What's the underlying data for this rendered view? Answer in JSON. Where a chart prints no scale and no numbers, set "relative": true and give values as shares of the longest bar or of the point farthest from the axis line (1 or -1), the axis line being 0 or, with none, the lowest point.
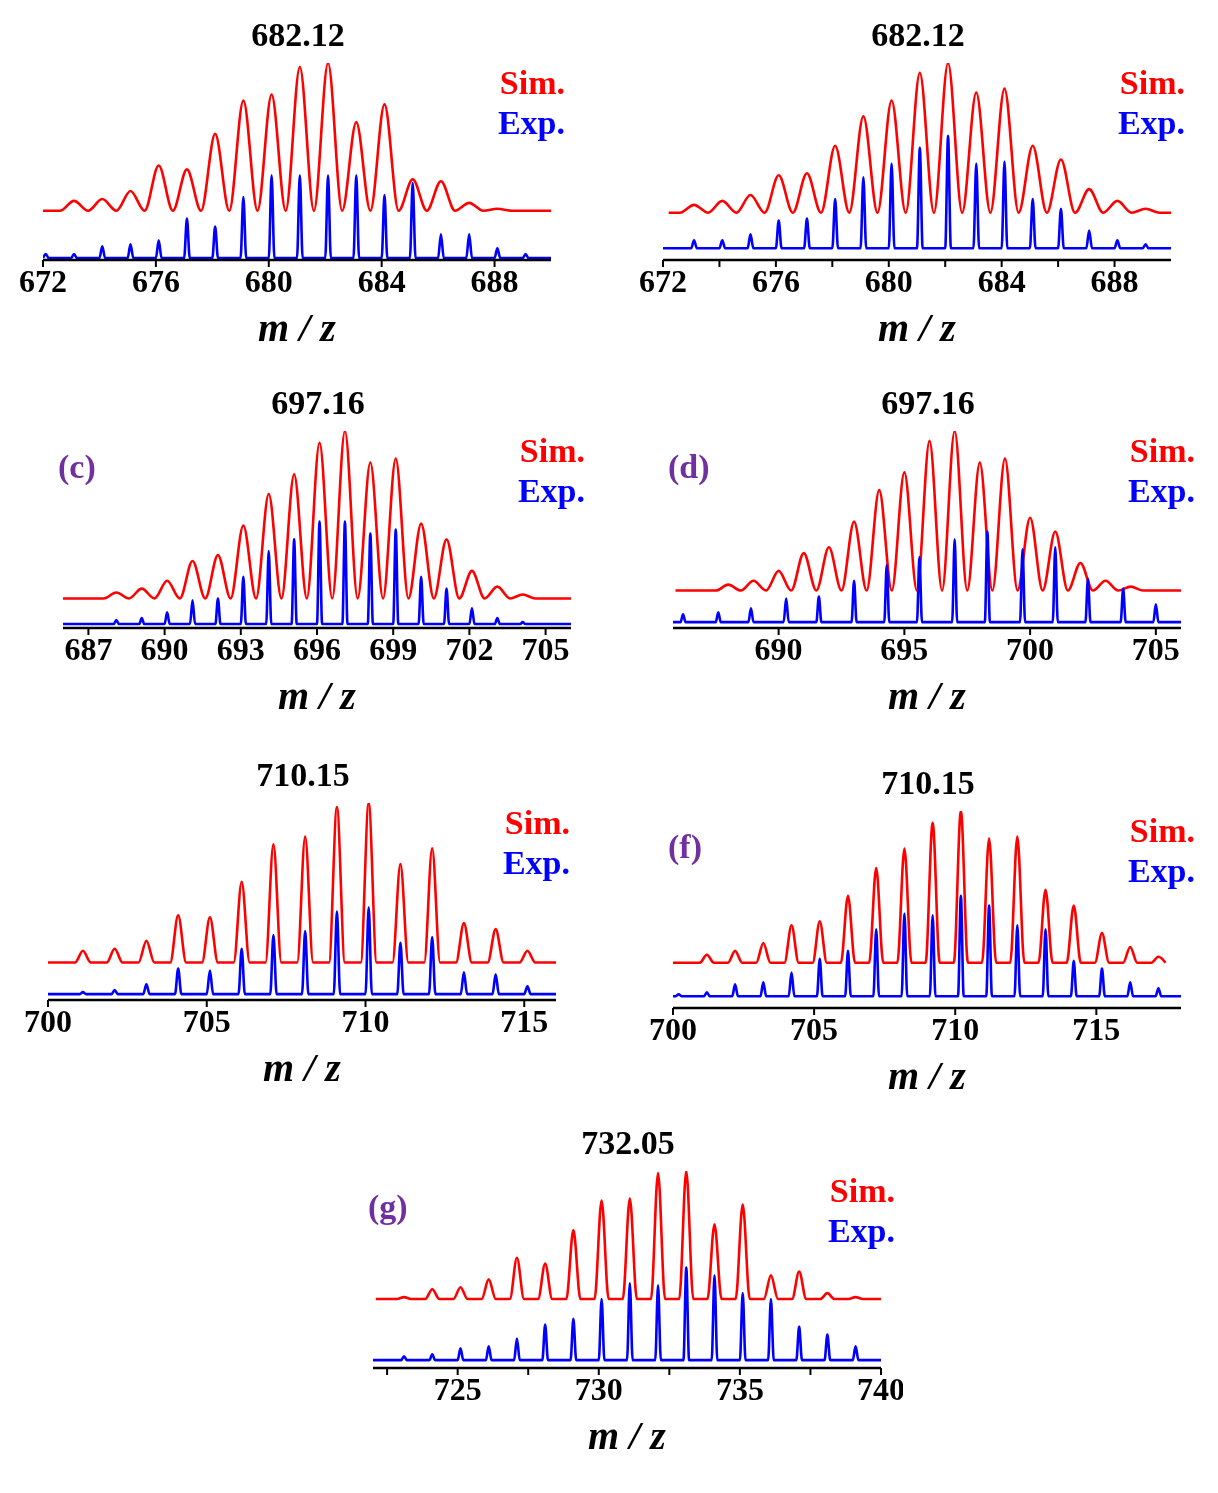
{
  "chart_data": [
    {
      "type": "line",
      "relative": true,
      "title": "682.12",
      "xlabel": "m / z",
      "xlim": [
        672,
        690
      ],
      "xticks": [
        672,
        676,
        680,
        684,
        688
      ],
      "legend": "top right",
      "series": [
        {
          "name": "Sim.",
          "color": "#ff0000",
          "x": [
            672,
            672.6,
            673.1,
            673.6,
            674.1,
            674.6,
            675.1,
            675.6,
            676.1,
            676.6,
            677.1,
            677.6,
            678.1,
            678.6,
            679.1,
            679.6,
            680.1,
            680.6,
            681.1,
            681.6,
            682.1,
            682.6,
            683.1,
            683.6,
            684.1,
            684.6,
            685.1,
            685.6,
            686.1,
            686.6,
            687.1,
            687.6,
            688.1,
            688.6,
            690
          ],
          "values": [
            0.25,
            0.25,
            0.3,
            0.25,
            0.31,
            0.25,
            0.35,
            0.25,
            0.48,
            0.25,
            0.46,
            0.25,
            0.64,
            0.25,
            0.81,
            0.25,
            0.84,
            0.25,
            0.98,
            0.25,
            1,
            0.25,
            0.7,
            0.25,
            0.79,
            0.25,
            0.41,
            0.25,
            0.4,
            0.25,
            0.29,
            0.25,
            0.26,
            0.25,
            0.25
          ]
        },
        {
          "name": "Exp.",
          "color": "#0000ff",
          "x": [
            672,
            672.1,
            672.2,
            673,
            673.1,
            673.2,
            674,
            674.1,
            674.2,
            675,
            675.1,
            675.2,
            676,
            676.1,
            676.2,
            677,
            677.1,
            677.2,
            678,
            678.1,
            678.2,
            679,
            679.1,
            679.2,
            680,
            680.1,
            680.2,
            681,
            681.1,
            681.2,
            682,
            682.1,
            682.2,
            683,
            683.1,
            683.2,
            684,
            684.1,
            684.2,
            685,
            685.1,
            685.2,
            686,
            686.1,
            686.2,
            687,
            687.1,
            687.2,
            688,
            688.1,
            688.2,
            689,
            689.1,
            689.2,
            690
          ],
          "values": [
            0.01,
            0.03,
            0.01,
            0.01,
            0.03,
            0.01,
            0.01,
            0.07,
            0.01,
            0.01,
            0.08,
            0.01,
            0.01,
            0.1,
            0.01,
            0.01,
            0.21,
            0.01,
            0.01,
            0.17,
            0.01,
            0.01,
            0.32,
            0.01,
            0.01,
            0.43,
            0.01,
            0.01,
            0.43,
            0.01,
            0.01,
            0.43,
            0.01,
            0.01,
            0.43,
            0.01,
            0.01,
            0.33,
            0.01,
            0.01,
            0.39,
            0.01,
            0.01,
            0.13,
            0.01,
            0.01,
            0.13,
            0.01,
            0.01,
            0.06,
            0.01,
            0.01,
            0.03,
            0.01,
            0.01
          ]
        }
      ]
    },
    {
      "type": "line",
      "relative": true,
      "title": "682.12",
      "xlabel": "m / z",
      "xlim": [
        672,
        690
      ],
      "xticks": [
        672,
        {
          "value": 674,
          "label": null
        },
        676,
        {
          "value": 678,
          "label": null
        },
        680,
        {
          "value": 682,
          "label": null
        },
        684,
        {
          "value": 686,
          "label": null
        },
        688
      ],
      "legend": "top right",
      "series": [
        {
          "name": "Sim.",
          "color": "#ff0000",
          "x": [
            672.2,
            672.6,
            673.1,
            673.6,
            674.1,
            674.6,
            675.1,
            675.6,
            676.1,
            676.6,
            677.1,
            677.6,
            678.1,
            678.6,
            679.1,
            679.6,
            680.1,
            680.6,
            681.1,
            681.6,
            682.1,
            682.6,
            683.1,
            683.6,
            684.1,
            684.6,
            685.1,
            685.6,
            686.1,
            686.6,
            687.1,
            687.6,
            688.1,
            688.6,
            689.1,
            689.6,
            690
          ],
          "values": [
            0.24,
            0.24,
            0.28,
            0.24,
            0.3,
            0.24,
            0.33,
            0.24,
            0.43,
            0.24,
            0.44,
            0.24,
            0.58,
            0.24,
            0.73,
            0.24,
            0.81,
            0.24,
            0.95,
            0.24,
            1,
            0.24,
            0.85,
            0.24,
            0.87,
            0.24,
            0.58,
            0.24,
            0.51,
            0.24,
            0.36,
            0.24,
            0.3,
            0.24,
            0.26,
            0.24,
            0.24
          ]
        },
        {
          "name": "Exp.",
          "color": "#0000ff",
          "x": [
            672,
            673,
            673.1,
            673.2,
            674,
            674.1,
            674.2,
            675,
            675.1,
            675.2,
            676,
            676.1,
            676.2,
            677,
            677.1,
            677.2,
            678,
            678.1,
            678.2,
            679,
            679.1,
            679.2,
            680,
            680.1,
            680.2,
            681,
            681.1,
            681.2,
            682,
            682.1,
            682.2,
            683,
            683.1,
            683.2,
            684,
            684.1,
            684.2,
            685,
            685.1,
            685.2,
            686,
            686.1,
            686.2,
            687,
            687.1,
            687.2,
            688,
            688.1,
            688.2,
            689,
            689.1,
            689.2,
            690
          ],
          "values": [
            0.06,
            0.06,
            0.1,
            0.06,
            0.06,
            0.1,
            0.06,
            0.06,
            0.13,
            0.06,
            0.06,
            0.2,
            0.06,
            0.06,
            0.21,
            0.06,
            0.06,
            0.31,
            0.06,
            0.06,
            0.42,
            0.06,
            0.06,
            0.49,
            0.06,
            0.06,
            0.57,
            0.06,
            0.06,
            0.63,
            0.06,
            0.06,
            0.49,
            0.06,
            0.06,
            0.5,
            0.06,
            0.06,
            0.31,
            0.06,
            0.06,
            0.26,
            0.06,
            0.06,
            0.15,
            0.06,
            0.06,
            0.1,
            0.06,
            0.06,
            0.08,
            0.06,
            0.06
          ]
        }
      ]
    },
    {
      "type": "line",
      "relative": true,
      "title": "697.16",
      "xlabel": "m / z",
      "annotations": [
        "(c)"
      ],
      "xlim": [
        686,
        706
      ],
      "xticks": [
        687,
        690,
        693,
        696,
        699,
        702,
        705
      ],
      "legend": "top right",
      "series": [
        {
          "name": "Sim.",
          "color": "#ff0000",
          "x": [
            686,
            687.6,
            688.1,
            688.6,
            689.1,
            689.6,
            690.1,
            690.6,
            691.1,
            691.6,
            692.1,
            692.6,
            693.1,
            693.6,
            694.1,
            694.6,
            695.1,
            695.6,
            696.1,
            696.6,
            697.1,
            697.6,
            698.1,
            698.6,
            699.1,
            699.6,
            700.1,
            700.6,
            701.1,
            701.6,
            702.1,
            702.6,
            703.1,
            703.6,
            704.1,
            704.6,
            706
          ],
          "values": [
            0.15,
            0.15,
            0.18,
            0.15,
            0.2,
            0.15,
            0.24,
            0.15,
            0.34,
            0.15,
            0.37,
            0.15,
            0.52,
            0.15,
            0.68,
            0.15,
            0.78,
            0.15,
            0.94,
            0.15,
            1,
            0.15,
            0.84,
            0.15,
            0.86,
            0.15,
            0.53,
            0.15,
            0.45,
            0.15,
            0.29,
            0.15,
            0.21,
            0.15,
            0.17,
            0.15,
            0.15
          ]
        },
        {
          "name": "Exp.",
          "color": "#0000ff",
          "x": [
            686,
            688,
            688.1,
            688.2,
            689,
            689.1,
            689.2,
            690,
            690.1,
            690.2,
            691,
            691.1,
            691.2,
            692,
            692.1,
            692.2,
            693,
            693.1,
            693.2,
            694,
            694.1,
            694.2,
            695,
            695.1,
            695.2,
            696,
            696.1,
            696.2,
            697,
            697.1,
            697.2,
            698,
            698.1,
            698.2,
            699,
            699.1,
            699.2,
            700,
            700.1,
            700.2,
            701,
            701.1,
            701.2,
            702,
            702.1,
            702.2,
            703,
            703.1,
            703.2,
            704,
            704.1,
            704.2,
            706
          ],
          "values": [
            0.02,
            0.02,
            0.04,
            0.02,
            0.02,
            0.05,
            0.02,
            0.02,
            0.08,
            0.02,
            0.02,
            0.14,
            0.02,
            0.02,
            0.15,
            0.02,
            0.02,
            0.26,
            0.02,
            0.02,
            0.39,
            0.02,
            0.02,
            0.45,
            0.02,
            0.02,
            0.54,
            0.02,
            0.02,
            0.54,
            0.02,
            0.02,
            0.48,
            0.02,
            0.02,
            0.5,
            0.02,
            0.02,
            0.26,
            0.02,
            0.02,
            0.2,
            0.02,
            0.02,
            0.1,
            0.02,
            0.02,
            0.05,
            0.02,
            0.02,
            0.03,
            0.02,
            0.02
          ]
        }
      ]
    },
    {
      "type": "line",
      "relative": true,
      "title": "697.16",
      "xlabel": "m / z",
      "annotations": [
        "(d)"
      ],
      "xlim": [
        685.8,
        706
      ],
      "xticks": [
        690,
        695,
        700,
        705
      ],
      "legend": "top right",
      "series": [
        {
          "name": "Sim.",
          "color": "#ff0000",
          "x": [
            685.9,
            687.5,
            688,
            688.5,
            689,
            689.5,
            690,
            690.5,
            691,
            691.5,
            692,
            692.5,
            693,
            693.5,
            694,
            694.5,
            695,
            695.5,
            696,
            696.5,
            697,
            697.5,
            698,
            698.5,
            699,
            699.5,
            700,
            700.5,
            701,
            701.5,
            702,
            702.5,
            703,
            703.5,
            704,
            704.5,
            706
          ],
          "values": [
            0.19,
            0.19,
            0.22,
            0.19,
            0.24,
            0.19,
            0.29,
            0.19,
            0.38,
            0.19,
            0.41,
            0.19,
            0.54,
            0.19,
            0.7,
            0.19,
            0.79,
            0.19,
            0.95,
            0.19,
            1,
            0.19,
            0.84,
            0.19,
            0.86,
            0.19,
            0.56,
            0.19,
            0.49,
            0.19,
            0.33,
            0.19,
            0.24,
            0.19,
            0.21,
            0.19,
            0.19
          ]
        },
        {
          "name": "Exp.",
          "color": "#0000ff",
          "x": [
            685.8,
            686.1,
            686.2,
            686.3,
            687.5,
            687.6,
            687.7,
            688.8,
            688.9,
            689,
            690.2,
            690.3,
            690.4,
            691.5,
            691.6,
            691.7,
            692.9,
            693,
            693.1,
            694.2,
            694.3,
            694.4,
            695.5,
            695.6,
            695.7,
            696.9,
            697,
            697.1,
            698.2,
            698.3,
            698.4,
            699.6,
            699.7,
            699.8,
            700.9,
            701,
            701.1,
            702.2,
            702.3,
            702.4,
            703.6,
            703.7,
            703.8,
            704.9,
            705,
            705.1,
            706
          ],
          "values": [
            0.03,
            0.03,
            0.07,
            0.03,
            0.03,
            0.08,
            0.03,
            0.03,
            0.1,
            0.03,
            0.03,
            0.15,
            0.03,
            0.03,
            0.16,
            0.03,
            0.03,
            0.24,
            0.03,
            0.03,
            0.32,
            0.03,
            0.03,
            0.36,
            0.03,
            0.03,
            0.45,
            0.03,
            0.03,
            0.49,
            0.03,
            0.03,
            0.4,
            0.03,
            0.03,
            0.41,
            0.03,
            0.03,
            0.25,
            0.03,
            0.03,
            0.2,
            0.03,
            0.03,
            0.12,
            0.03,
            0.03
          ]
        }
      ]
    },
    {
      "type": "line",
      "relative": true,
      "title": "710.15",
      "xlabel": "m / z",
      "xlim": [
        700,
        716
      ],
      "xticks": [
        700,
        705,
        710,
        715
      ],
      "legend": "top right",
      "series": [
        {
          "name": "Sim.",
          "color": "#ff0000",
          "x": [
            700,
            700.85,
            701.1,
            701.35,
            701.85,
            702.1,
            702.35,
            702.85,
            703.1,
            703.35,
            703.85,
            704.1,
            704.35,
            704.85,
            705.1,
            705.35,
            705.85,
            706.1,
            706.35,
            706.85,
            707.1,
            707.35,
            707.85,
            708.1,
            708.35,
            708.85,
            709.1,
            709.35,
            709.85,
            710.1,
            710.35,
            710.85,
            711.1,
            711.35,
            711.85,
            712.1,
            712.35,
            712.85,
            713.1,
            713.35,
            713.85,
            714.1,
            714.35,
            714.85,
            715.1,
            715.35,
            716
          ],
          "values": [
            0.19,
            0.19,
            0.25,
            0.19,
            0.19,
            0.26,
            0.19,
            0.19,
            0.3,
            0.19,
            0.19,
            0.43,
            0.19,
            0.19,
            0.42,
            0.19,
            0.19,
            0.6,
            0.19,
            0.19,
            0.79,
            0.19,
            0.19,
            0.83,
            0.19,
            0.19,
            0.98,
            0.19,
            0.19,
            1,
            0.19,
            0.19,
            0.69,
            0.19,
            0.19,
            0.77,
            0.19,
            0.19,
            0.39,
            0.19,
            0.19,
            0.36,
            0.19,
            0.19,
            0.25,
            0.19,
            0.19
          ]
        },
        {
          "name": "Exp.",
          "color": "#0000ff",
          "x": [
            700,
            701,
            701.1,
            701.2,
            702,
            702.1,
            702.2,
            703,
            703.1,
            703.2,
            704,
            704.1,
            704.2,
            705,
            705.1,
            705.2,
            706,
            706.1,
            706.2,
            707,
            707.1,
            707.2,
            708,
            708.1,
            708.2,
            709,
            709.1,
            709.2,
            710,
            710.1,
            710.2,
            711,
            711.1,
            711.2,
            712,
            712.1,
            712.2,
            713,
            713.1,
            713.2,
            714,
            714.1,
            714.2,
            715,
            715.1,
            715.2,
            716
          ],
          "values": [
            0.03,
            0.03,
            0.04,
            0.03,
            0.03,
            0.05,
            0.03,
            0.03,
            0.08,
            0.03,
            0.03,
            0.16,
            0.03,
            0.03,
            0.15,
            0.03,
            0.03,
            0.26,
            0.03,
            0.03,
            0.33,
            0.03,
            0.03,
            0.35,
            0.03,
            0.03,
            0.45,
            0.03,
            0.03,
            0.47,
            0.03,
            0.03,
            0.29,
            0.03,
            0.03,
            0.32,
            0.03,
            0.03,
            0.14,
            0.03,
            0.03,
            0.13,
            0.03,
            0.03,
            0.07,
            0.03,
            0.03
          ]
        }
      ]
    },
    {
      "type": "line",
      "relative": true,
      "title": "710.15",
      "xlabel": "m / z",
      "annotations": [
        "(f)"
      ],
      "xlim": [
        700,
        718
      ],
      "xticks": [
        700,
        705,
        710,
        715
      ],
      "legend": "top right",
      "series": [
        {
          "name": "Sim.",
          "color": "#ff0000",
          "x": [
            700,
            700.95,
            701.2,
            701.45,
            701.95,
            702.2,
            702.45,
            702.95,
            703.2,
            703.45,
            703.95,
            704.2,
            704.45,
            704.95,
            705.2,
            705.45,
            705.95,
            706.2,
            706.45,
            706.95,
            707.2,
            707.45,
            707.95,
            708.2,
            708.45,
            708.95,
            709.2,
            709.45,
            709.95,
            710.2,
            710.45,
            710.95,
            711.2,
            711.45,
            711.95,
            712.2,
            712.45,
            712.95,
            713.2,
            713.45,
            713.95,
            714.2,
            714.45,
            714.95,
            715.2,
            715.45,
            715.95,
            716.2,
            716.45,
            716.95,
            717.2,
            717.45
          ],
          "values": [
            0.23,
            0.23,
            0.27,
            0.23,
            0.23,
            0.29,
            0.23,
            0.23,
            0.33,
            0.23,
            0.23,
            0.42,
            0.23,
            0.23,
            0.44,
            0.23,
            0.23,
            0.57,
            0.23,
            0.23,
            0.71,
            0.23,
            0.23,
            0.81,
            0.23,
            0.23,
            0.94,
            0.23,
            0.23,
            1,
            0.23,
            0.23,
            0.86,
            0.23,
            0.23,
            0.87,
            0.23,
            0.23,
            0.6,
            0.23,
            0.23,
            0.52,
            0.23,
            0.23,
            0.38,
            0.23,
            0.23,
            0.31,
            0.23,
            0.23,
            0.26,
            0.23
          ]
        },
        {
          "name": "Exp.",
          "color": "#0000ff",
          "x": [
            700,
            700.1,
            700.2,
            700.3,
            701.1,
            701.2,
            701.3,
            702.1,
            702.2,
            702.3,
            703.1,
            703.2,
            703.3,
            704.1,
            704.2,
            704.3,
            705.1,
            705.2,
            705.3,
            706.1,
            706.2,
            706.3,
            707.1,
            707.2,
            707.3,
            708.1,
            708.2,
            708.3,
            709.1,
            709.2,
            709.3,
            710.1,
            710.2,
            710.3,
            711.1,
            711.2,
            711.3,
            712.1,
            712.2,
            712.3,
            713.1,
            713.2,
            713.3,
            714.1,
            714.2,
            714.3,
            715.1,
            715.2,
            715.3,
            716.1,
            716.2,
            716.3,
            717.1,
            717.2,
            717.3,
            718
          ],
          "values": [
            0.06,
            0.06,
            0.07,
            0.06,
            0.06,
            0.08,
            0.06,
            0.06,
            0.12,
            0.06,
            0.06,
            0.13,
            0.06,
            0.06,
            0.18,
            0.06,
            0.06,
            0.25,
            0.06,
            0.06,
            0.29,
            0.06,
            0.06,
            0.4,
            0.06,
            0.06,
            0.48,
            0.06,
            0.06,
            0.47,
            0.06,
            0.06,
            0.57,
            0.06,
            0.06,
            0.52,
            0.06,
            0.06,
            0.42,
            0.06,
            0.06,
            0.4,
            0.06,
            0.06,
            0.24,
            0.06,
            0.06,
            0.2,
            0.06,
            0.06,
            0.13,
            0.06,
            0.06,
            0.1,
            0.06,
            0.06
          ]
        }
      ]
    },
    {
      "type": "line",
      "relative": true,
      "title": "732.05",
      "xlabel": "m / z",
      "annotations": [
        "(g)"
      ],
      "xlim": [
        722,
        740
      ],
      "xticks": [
        {
          "value": 722.5,
          "label": null
        },
        725,
        {
          "value": 727.5,
          "label": null
        },
        730,
        {
          "value": 732.5,
          "label": null
        },
        735,
        {
          "value": 737.5,
          "label": null
        },
        740
      ],
      "legend": "top right",
      "series": [
        {
          "name": "Sim.",
          "color": "#ff0000",
          "x": [
            722.1,
            722.85,
            723.1,
            723.35,
            723.85,
            724.1,
            724.35,
            724.85,
            725.1,
            725.35,
            725.85,
            726.1,
            726.35,
            726.85,
            727.1,
            727.35,
            727.85,
            728.1,
            728.35,
            728.85,
            729.1,
            729.35,
            729.85,
            730.1,
            730.35,
            730.85,
            731.1,
            731.35,
            731.85,
            732.1,
            732.35,
            732.85,
            733.1,
            733.35,
            733.85,
            734.1,
            734.35,
            734.85,
            735.1,
            735.35,
            735.85,
            736.1,
            736.35,
            736.85,
            737.1,
            737.35,
            737.85,
            738.1,
            738.35,
            738.85,
            739.1,
            739.35,
            740
          ],
          "values": [
            0.35,
            0.35,
            0.36,
            0.35,
            0.35,
            0.4,
            0.35,
            0.35,
            0.41,
            0.35,
            0.35,
            0.45,
            0.35,
            0.35,
            0.56,
            0.35,
            0.35,
            0.53,
            0.35,
            0.35,
            0.7,
            0.35,
            0.35,
            0.85,
            0.35,
            0.35,
            0.86,
            0.35,
            0.35,
            0.99,
            0.35,
            0.35,
            1,
            0.35,
            0.35,
            0.73,
            0.35,
            0.35,
            0.83,
            0.35,
            0.35,
            0.47,
            0.35,
            0.35,
            0.49,
            0.35,
            0.35,
            0.38,
            0.35,
            0.35,
            0.36,
            0.35,
            0.35
          ]
        },
        {
          "name": "Exp.",
          "color": "#0000ff",
          "x": [
            722,
            723,
            723.1,
            723.2,
            724,
            724.1,
            724.2,
            725,
            725.1,
            725.2,
            726,
            726.1,
            726.2,
            727,
            727.1,
            727.2,
            728,
            728.1,
            728.2,
            729,
            729.1,
            729.2,
            730,
            730.1,
            730.2,
            731,
            731.1,
            731.2,
            732,
            732.1,
            732.2,
            733,
            733.1,
            733.2,
            734,
            734.1,
            734.2,
            735,
            735.1,
            735.2,
            736,
            736.1,
            736.2,
            737,
            737.1,
            737.2,
            738,
            738.1,
            738.2,
            739,
            739.1,
            739.2,
            740
          ],
          "values": [
            0.04,
            0.04,
            0.06,
            0.04,
            0.04,
            0.07,
            0.04,
            0.04,
            0.1,
            0.04,
            0.04,
            0.11,
            0.04,
            0.04,
            0.15,
            0.04,
            0.04,
            0.22,
            0.04,
            0.04,
            0.25,
            0.04,
            0.04,
            0.35,
            0.04,
            0.04,
            0.43,
            0.04,
            0.04,
            0.42,
            0.04,
            0.04,
            0.51,
            0.04,
            0.04,
            0.47,
            0.04,
            0.04,
            0.38,
            0.04,
            0.04,
            0.35,
            0.04,
            0.04,
            0.21,
            0.04,
            0.04,
            0.17,
            0.04,
            0.04,
            0.11,
            0.04,
            0.04
          ]
        }
      ]
    }
  ]
}
